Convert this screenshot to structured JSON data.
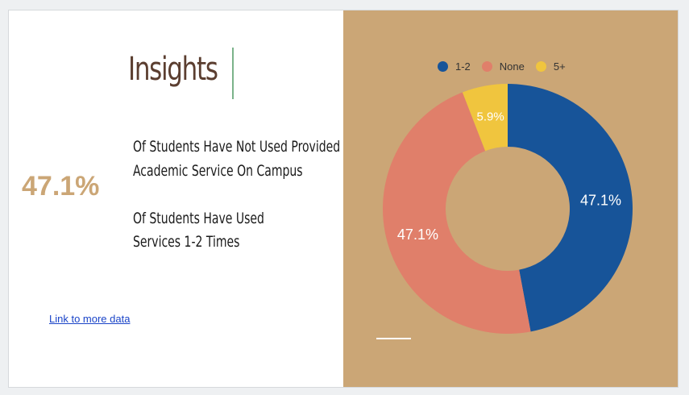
{
  "slide": {
    "title": "Insights",
    "big_stat": "47.1%",
    "statements": [
      "Of Students Have Not Used Provided",
      "Academic Service On Campus",
      "Of Students Have Used",
      "Services 1-2 Times"
    ],
    "link_text": "Link to more data"
  },
  "colors": {
    "panel_background": "#cba676",
    "accent_text": "#cba676",
    "title_text": "#5b3e30",
    "title_rule": "#7bb38a",
    "link": "#1a44c8"
  },
  "chart_data": {
    "type": "pie",
    "variant": "donut",
    "legend_position": "top",
    "categories": [
      "1-2",
      "None",
      "5+"
    ],
    "values": [
      47.1,
      47.1,
      5.9
    ],
    "value_labels": [
      "47.1%",
      "47.1%",
      "5.9%"
    ],
    "colors": [
      "#175499",
      "#e07f6a",
      "#f0c53e"
    ],
    "title": ""
  }
}
